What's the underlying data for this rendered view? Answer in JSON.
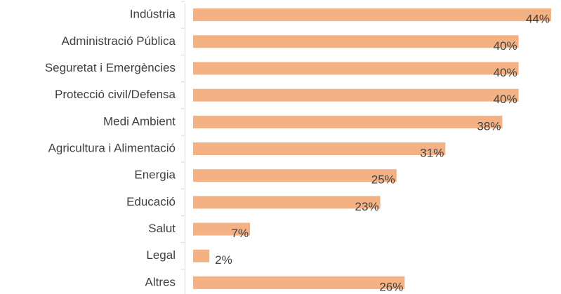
{
  "chart_data": {
    "type": "bar",
    "orientation": "horizontal",
    "categories": [
      "Indústria",
      "Administració Pública",
      "Seguretat i Emergències",
      "Protecció civil/Defensa",
      "Medi Ambient",
      "Agricultura i Alimentació",
      "Energia",
      "Educació",
      "Salut",
      "Legal",
      "Altres"
    ],
    "values": [
      44,
      40,
      40,
      40,
      38,
      31,
      25,
      23,
      7,
      2,
      26
    ],
    "value_labels": [
      "44%",
      "40%",
      "40%",
      "40%",
      "38%",
      "31%",
      "25%",
      "23%",
      "7%",
      "2%",
      "26%"
    ],
    "color": "#f4b183"
  }
}
